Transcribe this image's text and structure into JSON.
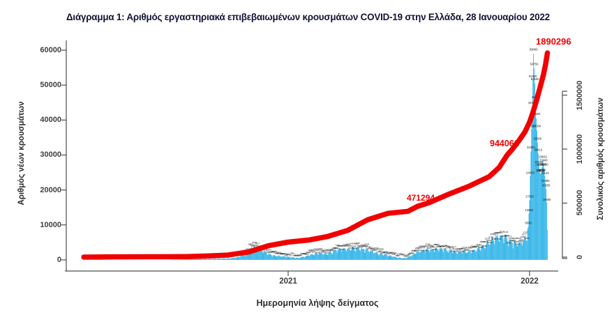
{
  "title": "Διάγραμμα 1: Αριθμός εργαστηριακά επιβεβαιωμένων κρουσμάτων COVID-19 στην Ελλάδα, 28 Ιανουαρίου 2022",
  "axes": {
    "left": {
      "label": "Αριθμός νέων κρουσμάτων",
      "ticks": [
        "0",
        "10000",
        "20000",
        "30000",
        "40000",
        "50000",
        "60000"
      ]
    },
    "right": {
      "label": "Συνολικός αριθμός κρουσμάτων",
      "ticks": [
        "0",
        "500000",
        "1000000",
        "1500000"
      ]
    },
    "x": {
      "label": "Ημερομηνία λήψης δείγματος",
      "ticks": [
        "2021",
        "2022"
      ]
    }
  },
  "chart_data": {
    "type": "bar",
    "title": "Διάγραμμα 1: Αριθμός εργαστηριακά επιβεβαιωμένων κρουσμάτων COVID-19 στην Ελλάδα, 28 Ιανουαρίου 2022",
    "xlabel": "Ημερομηνία λήψης δείγματος",
    "ylabel_left": "Αριθμός νέων κρουσμάτων",
    "ylabel_right": "Συνολικός αριθμός κρουσμάτων",
    "x_tick_labels": [
      "2021",
      "2022"
    ],
    "x_unit": "days since 2020-01-01 (tick 2021 = day 366, tick 2022 = day 731)",
    "left_axis": {
      "ticks": [
        0,
        10000,
        20000,
        30000,
        40000,
        50000,
        60000
      ],
      "range": [
        0,
        60000
      ]
    },
    "right_axis": {
      "ticks": [
        0,
        500000,
        1000000,
        1500000
      ],
      "range": [
        0,
        1950000
      ]
    },
    "grid": false,
    "legend": "none",
    "colors": {
      "bars": "#2fb3e8",
      "cumulative_line": "#f10000",
      "bar_value_labels": "#141414"
    },
    "series": [
      {
        "name": "daily_new_cases",
        "type": "bar",
        "axis": "left",
        "color": "#2fb3e8",
        "keypoints_day_value": [
          [
            57,
            2
          ],
          [
            70,
            40
          ],
          [
            80,
            90
          ],
          [
            92,
            30
          ],
          [
            110,
            15
          ],
          [
            130,
            12
          ],
          [
            153,
            10
          ],
          [
            183,
            30
          ],
          [
            200,
            120
          ],
          [
            214,
            230
          ],
          [
            245,
            280
          ],
          [
            260,
            330
          ],
          [
            275,
            420
          ],
          [
            290,
            750
          ],
          [
            300,
            1600
          ],
          [
            306,
            2500
          ],
          [
            312,
            3400
          ],
          [
            316,
            3600
          ],
          [
            322,
            3000
          ],
          [
            330,
            2300
          ],
          [
            336,
            1600
          ],
          [
            345,
            1250
          ],
          [
            356,
            1050
          ],
          [
            366,
            850
          ],
          [
            380,
            560
          ],
          [
            390,
            900
          ],
          [
            397,
            1350
          ],
          [
            410,
            1900
          ],
          [
            425,
            1750
          ],
          [
            440,
            2900
          ],
          [
            456,
            3200
          ],
          [
            468,
            3300
          ],
          [
            486,
            2900
          ],
          [
            500,
            1900
          ],
          [
            517,
            1350
          ],
          [
            530,
            750
          ],
          [
            540,
            480
          ],
          [
            547,
            750
          ],
          [
            555,
            1500
          ],
          [
            560,
            2200
          ],
          [
            570,
            2900
          ],
          [
            578,
            3000
          ],
          [
            590,
            3100
          ],
          [
            609,
            2750
          ],
          [
            620,
            2350
          ],
          [
            639,
            2400
          ],
          [
            650,
            2900
          ],
          [
            660,
            3700
          ],
          [
            670,
            5100
          ],
          [
            678,
            6300
          ],
          [
            686,
            7000
          ],
          [
            694,
            6500
          ],
          [
            700,
            5400
          ],
          [
            708,
            4700
          ],
          [
            715,
            4800
          ],
          [
            722,
            5400
          ],
          [
            727,
            7200
          ],
          [
            729,
            9500
          ],
          [
            731,
            17000
          ],
          [
            733,
            31000
          ],
          [
            735,
            44000
          ],
          [
            737,
            59000
          ],
          [
            739,
            50500
          ],
          [
            741,
            40500
          ],
          [
            743,
            33500
          ],
          [
            745,
            27326
          ],
          [
            747,
            24806
          ],
          [
            748,
            24510
          ],
          [
            749,
            24504
          ],
          [
            751,
            28632
          ],
          [
            753,
            26260
          ],
          [
            755,
            21985
          ],
          [
            756,
            20259
          ],
          [
            757,
            16500
          ],
          [
            758,
            8500
          ]
        ]
      },
      {
        "name": "cumulative_cases",
        "type": "line",
        "axis": "right",
        "color": "#f10000",
        "keypoints_day_value": [
          [
            57,
            10
          ],
          [
            92,
            1500
          ],
          [
            122,
            2700
          ],
          [
            153,
            2950
          ],
          [
            183,
            3500
          ],
          [
            214,
            4600
          ],
          [
            245,
            10500
          ],
          [
            275,
            18500
          ],
          [
            306,
            47000
          ],
          [
            336,
            105000
          ],
          [
            366,
            139000
          ],
          [
            397,
            158000
          ],
          [
            425,
            190000
          ],
          [
            456,
            247000
          ],
          [
            486,
            345000
          ],
          [
            517,
            405000
          ],
          [
            547,
            424000
          ],
          [
            562,
            471294
          ],
          [
            578,
            501000
          ],
          [
            609,
            583000
          ],
          [
            639,
            655000
          ],
          [
            670,
            745000
          ],
          [
            685,
            830000
          ],
          [
            697,
            944061
          ],
          [
            705,
            1000000
          ],
          [
            715,
            1080000
          ],
          [
            724,
            1160000
          ],
          [
            731,
            1250000
          ],
          [
            735,
            1320000
          ],
          [
            738,
            1380000
          ],
          [
            742,
            1460000
          ],
          [
            745,
            1530000
          ],
          [
            749,
            1620000
          ],
          [
            752,
            1690000
          ],
          [
            755,
            1780000
          ],
          [
            758,
            1890296
          ]
        ]
      }
    ],
    "annotations": [
      {
        "text": "471294",
        "value": 471294,
        "series": "cumulative_cases"
      },
      {
        "text": "944061",
        "value": 944061,
        "series": "cumulative_cases"
      },
      {
        "text": "1890296",
        "value": 1890296,
        "series": "cumulative_cases"
      }
    ]
  }
}
